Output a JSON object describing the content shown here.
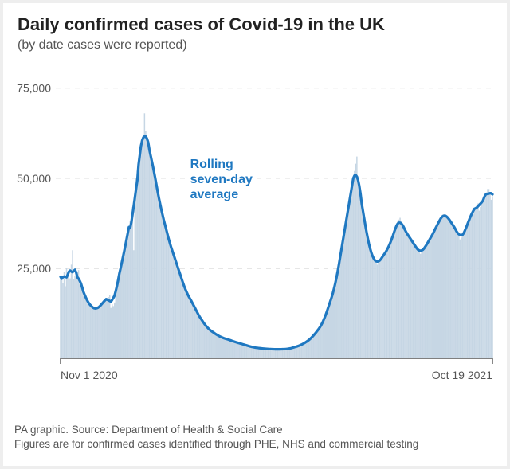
{
  "title": "Daily confirmed cases of Covid-19 in the UK",
  "subtitle": "(by date cases were reported)",
  "annotation": {
    "text_l1": "Rolling",
    "text_l2": "seven-day",
    "text_l3": "average"
  },
  "source_l1": "PA graphic. Source: Department of Health & Social Care",
  "source_l2": "Figures are for confirmed cases identified through PHE, NHS and commercial testing",
  "chart": {
    "type": "bar+line",
    "x_start_label": "Nov 1 2020",
    "x_end_label": "Oct 19 2021",
    "ylim": [
      0,
      80000
    ],
    "yticks": [
      25000,
      50000,
      75000
    ],
    "ytick_labels": [
      "25,000",
      "50,000",
      "75,000"
    ],
    "colors": {
      "background": "#ffffff",
      "grid": "#bfbfbf",
      "baseline": "#555555",
      "bar": "#c6d6e4",
      "line": "#1f78c1",
      "axis_text": "#555555",
      "title": "#222222",
      "annotation_text": "#1f78c1"
    },
    "line_width": 3.2,
    "bar_width_ratio": 1.0,
    "font": {
      "title_size": 22,
      "title_weight": "bold",
      "subtitle_size": 16,
      "tick_size": 14,
      "annotation_size": 16,
      "annotation_weight": "bold",
      "source_size": 13.5
    },
    "daily": [
      22500,
      23000,
      21000,
      24000,
      20000,
      25000,
      23500,
      21800,
      22200,
      26000,
      30000,
      22000,
      23000,
      22500,
      24000,
      24500,
      21000,
      20500,
      19500,
      18500,
      17500,
      16500,
      16000,
      15500,
      15000,
      14500,
      14200,
      14000,
      13800,
      13600,
      13500,
      13800,
      14000,
      14500,
      15000,
      15300,
      15800,
      16100,
      16500,
      16800,
      17000,
      17500,
      14000,
      15000,
      14500,
      15500,
      20000,
      21000,
      22000,
      23000,
      24500,
      26000,
      28000,
      30000,
      32000,
      33000,
      34000,
      36000,
      38000,
      40000,
      42000,
      30000,
      44000,
      50000,
      52000,
      55000,
      57000,
      58000,
      60000,
      62000,
      68000,
      63000,
      61000,
      59000,
      58000,
      56000,
      55000,
      54000,
      52000,
      50000,
      48000,
      46000,
      44000,
      42000,
      41000,
      40000,
      39000,
      37000,
      36000,
      34000,
      33000,
      32000,
      31000,
      30000,
      29000,
      28000,
      27000,
      26000,
      25000,
      24000,
      23000,
      22000,
      21000,
      20000,
      19000,
      18000,
      17500,
      17000,
      16500,
      16000,
      15500,
      15000,
      14000,
      13000,
      12500,
      12000,
      11500,
      11000,
      10500,
      10000,
      9500,
      9000,
      8500,
      8200,
      8000,
      7800,
      7500,
      7200,
      7000,
      6800,
      6600,
      6400,
      6200,
      6000,
      5800,
      5700,
      5600,
      5500,
      5400,
      5300,
      5200,
      5100,
      5000,
      4800,
      4700,
      4600,
      4500,
      4400,
      4300,
      4200,
      4100,
      4000,
      3900,
      3800,
      3700,
      3600,
      3500,
      3400,
      3300,
      3200,
      3100,
      3050,
      3000,
      2950,
      2900,
      2850,
      2800,
      2800,
      2750,
      2700,
      2700,
      2650,
      2600,
      2600,
      2580,
      2560,
      2550,
      2540,
      2530,
      2520,
      2510,
      2500,
      2500,
      2500,
      2520,
      2540,
      2560,
      2580,
      2600,
      2600,
      2600,
      2700,
      2800,
      2900,
      3000,
      3100,
      3200,
      3300,
      3400,
      3500,
      3600,
      3800,
      4000,
      4200,
      4400,
      4600,
      4800,
      5000,
      5300,
      5600,
      6000,
      6400,
      6800,
      7200,
      7600,
      8000,
      8500,
      9000,
      9500,
      10000,
      11000,
      12000,
      13000,
      14000,
      15000,
      16000,
      17000,
      18000,
      19000,
      20000,
      22000,
      24000,
      26000,
      28000,
      30000,
      32000,
      34000,
      36000,
      38000,
      40000,
      42000,
      44000,
      46000,
      48000,
      50000,
      52000,
      54000,
      56000,
      49000,
      47000,
      45000,
      43000,
      41000,
      39000,
      37000,
      35000,
      33000,
      31000,
      30000,
      29000,
      28000,
      27500,
      27000,
      26500,
      26000,
      26500,
      27000,
      27500,
      28000,
      28500,
      29000,
      29500,
      30000,
      30500,
      31000,
      32000,
      33000,
      34000,
      35000,
      36000,
      37000,
      38000,
      38500,
      39000,
      38000,
      37000,
      36000,
      35500,
      35000,
      34500,
      34000,
      33500,
      33000,
      32500,
      32000,
      31500,
      31000,
      30500,
      30000,
      29500,
      29000,
      29500,
      30000,
      30500,
      31000,
      31500,
      32000,
      32500,
      33000,
      34000,
      34500,
      35000,
      35500,
      36000,
      37000,
      38000,
      38500,
      39000,
      39500,
      40000,
      40000,
      40000,
      39500,
      39000,
      38500,
      38000,
      37500,
      37000,
      36500,
      36000,
      35500,
      35000,
      34000,
      33000,
      33500,
      34000,
      34500,
      35000,
      36000,
      37000,
      38000,
      39000,
      40000,
      40500,
      41000,
      41500,
      42000,
      42500,
      43000,
      41000,
      42000,
      43500,
      44000,
      44500,
      45000,
      46000,
      47000,
      47000,
      46000,
      44000,
      45000
    ]
  }
}
